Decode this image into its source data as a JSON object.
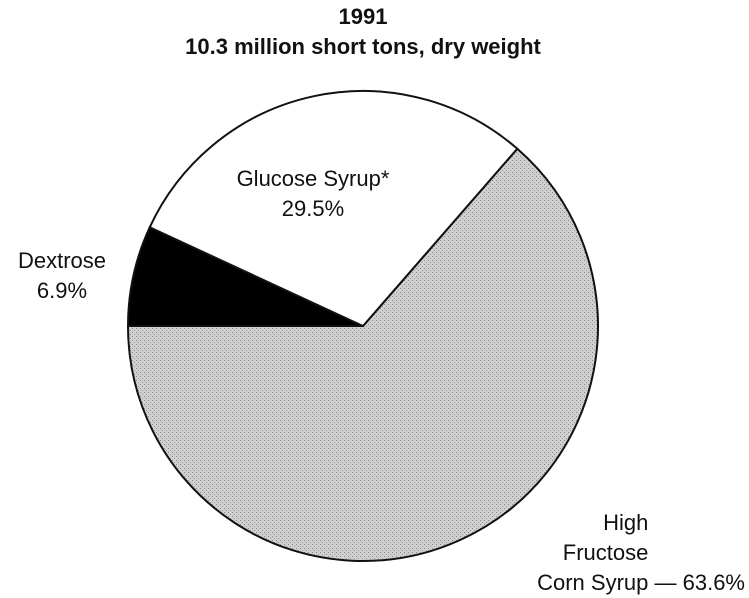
{
  "chart_data": {
    "type": "pie",
    "title": "1991",
    "subtitle": "10.3 million short tons, dry weight",
    "categories": [
      "High Fructose Corn Syrup",
      "Dextrose",
      "Glucose Syrup*"
    ],
    "values": [
      63.6,
      6.9,
      29.5
    ],
    "value_labels": [
      "— 63.6%",
      "6.9%",
      "29.5%"
    ],
    "colors": [
      "#c4c4c4",
      "#000000",
      "#ffffff"
    ]
  }
}
